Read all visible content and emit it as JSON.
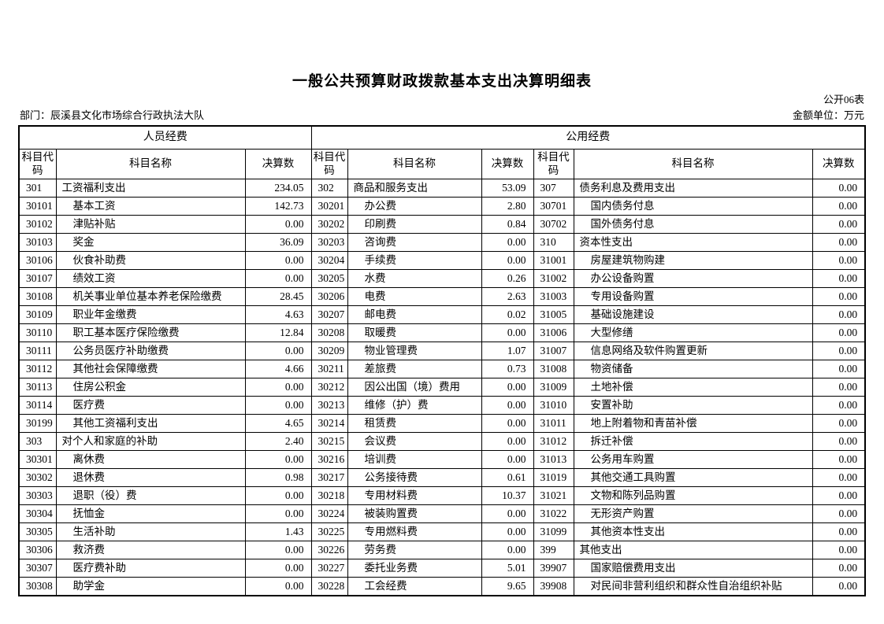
{
  "title": "一般公共预算财政拨款基本支出决算明细表",
  "meta": {
    "sheet_label": "公开06表",
    "department_label": "部门：辰溪县文化市场综合行政执法大队",
    "unit_label": "金额单位：万元"
  },
  "table": {
    "group_headers": [
      {
        "label": "人员经费"
      },
      {
        "label": "公用经费"
      }
    ],
    "col_header": {
      "code": "科目代码",
      "name": "科目名称",
      "value": "决算数"
    },
    "sections": [
      {
        "rows": [
          {
            "code": "301",
            "name": "工资福利支出",
            "value": "234.05"
          },
          {
            "code": "30101",
            "name": "基本工资",
            "value": "142.73"
          },
          {
            "code": "30102",
            "name": "津贴补贴",
            "value": "0.00"
          },
          {
            "code": "30103",
            "name": "奖金",
            "value": "36.09"
          },
          {
            "code": "30106",
            "name": "伙食补助费",
            "value": "0.00"
          },
          {
            "code": "30107",
            "name": "绩效工资",
            "value": "0.00"
          },
          {
            "code": "30108",
            "name": "机关事业单位基本养老保险缴费",
            "value": "28.45"
          },
          {
            "code": "30109",
            "name": "职业年金缴费",
            "value": "4.63"
          },
          {
            "code": "30110",
            "name": "职工基本医疗保险缴费",
            "value": "12.84"
          },
          {
            "code": "30111",
            "name": "公务员医疗补助缴费",
            "value": "0.00"
          },
          {
            "code": "30112",
            "name": "其他社会保障缴费",
            "value": "4.66"
          },
          {
            "code": "30113",
            "name": "住房公积金",
            "value": "0.00"
          },
          {
            "code": "30114",
            "name": "医疗费",
            "value": "0.00"
          },
          {
            "code": "30199",
            "name": "其他工资福利支出",
            "value": "4.65"
          },
          {
            "code": "303",
            "name": "对个人和家庭的补助",
            "value": "2.40"
          },
          {
            "code": "30301",
            "name": "离休费",
            "value": "0.00"
          },
          {
            "code": "30302",
            "name": "退休费",
            "value": "0.98"
          },
          {
            "code": "30303",
            "name": "退职（役）费",
            "value": "0.00"
          },
          {
            "code": "30304",
            "name": "抚恤金",
            "value": "0.00"
          },
          {
            "code": "30305",
            "name": "生活补助",
            "value": "1.43"
          },
          {
            "code": "30306",
            "name": "救济费",
            "value": "0.00"
          },
          {
            "code": "30307",
            "name": "医疗费补助",
            "value": "0.00"
          },
          {
            "code": "30308",
            "name": "助学金",
            "value": "0.00"
          }
        ]
      },
      {
        "rows": [
          {
            "code": "302",
            "name": "商品和服务支出",
            "value": "53.09"
          },
          {
            "code": "30201",
            "name": "办公费",
            "value": "2.80"
          },
          {
            "code": "30202",
            "name": "印刷费",
            "value": "0.84"
          },
          {
            "code": "30203",
            "name": "咨询费",
            "value": "0.00"
          },
          {
            "code": "30204",
            "name": "手续费",
            "value": "0.00"
          },
          {
            "code": "30205",
            "name": "水费",
            "value": "0.26"
          },
          {
            "code": "30206",
            "name": "电费",
            "value": "2.63"
          },
          {
            "code": "30207",
            "name": "邮电费",
            "value": "0.02"
          },
          {
            "code": "30208",
            "name": "取暖费",
            "value": "0.00"
          },
          {
            "code": "30209",
            "name": "物业管理费",
            "value": "1.07"
          },
          {
            "code": "30211",
            "name": "差旅费",
            "value": "0.73"
          },
          {
            "code": "30212",
            "name": "因公出国（境）费用",
            "value": "0.00"
          },
          {
            "code": "30213",
            "name": "维修（护）费",
            "value": "0.00"
          },
          {
            "code": "30214",
            "name": "租赁费",
            "value": "0.00"
          },
          {
            "code": "30215",
            "name": "会议费",
            "value": "0.00"
          },
          {
            "code": "30216",
            "name": "培训费",
            "value": "0.00"
          },
          {
            "code": "30217",
            "name": "公务接待费",
            "value": "0.61"
          },
          {
            "code": "30218",
            "name": "专用材料费",
            "value": "10.37"
          },
          {
            "code": "30224",
            "name": "被装购置费",
            "value": "0.00"
          },
          {
            "code": "30225",
            "name": "专用燃料费",
            "value": "0.00"
          },
          {
            "code": "30226",
            "name": "劳务费",
            "value": "0.00"
          },
          {
            "code": "30227",
            "name": "委托业务费",
            "value": "5.01"
          },
          {
            "code": "30228",
            "name": "工会经费",
            "value": "9.65"
          }
        ]
      },
      {
        "rows": [
          {
            "code": "307",
            "name": "债务利息及费用支出",
            "value": "0.00"
          },
          {
            "code": "30701",
            "name": "国内债务付息",
            "value": "0.00"
          },
          {
            "code": "30702",
            "name": "国外债务付息",
            "value": "0.00"
          },
          {
            "code": "310",
            "name": "资本性支出",
            "value": "0.00"
          },
          {
            "code": "31001",
            "name": "房屋建筑物购建",
            "value": "0.00"
          },
          {
            "code": "31002",
            "name": "办公设备购置",
            "value": "0.00"
          },
          {
            "code": "31003",
            "name": "专用设备购置",
            "value": "0.00"
          },
          {
            "code": "31005",
            "name": "基础设施建设",
            "value": "0.00"
          },
          {
            "code": "31006",
            "name": "大型修缮",
            "value": "0.00"
          },
          {
            "code": "31007",
            "name": "信息网络及软件购置更新",
            "value": "0.00"
          },
          {
            "code": "31008",
            "name": "物资储备",
            "value": "0.00"
          },
          {
            "code": "31009",
            "name": "土地补偿",
            "value": "0.00"
          },
          {
            "code": "31010",
            "name": "安置补助",
            "value": "0.00"
          },
          {
            "code": "31011",
            "name": "地上附着物和青苗补偿",
            "value": "0.00"
          },
          {
            "code": "31012",
            "name": "拆迁补偿",
            "value": "0.00"
          },
          {
            "code": "31013",
            "name": "公务用车购置",
            "value": "0.00"
          },
          {
            "code": "31019",
            "name": "其他交通工具购置",
            "value": "0.00"
          },
          {
            "code": "31021",
            "name": "文物和陈列品购置",
            "value": "0.00"
          },
          {
            "code": "31022",
            "name": "无形资产购置",
            "value": "0.00"
          },
          {
            "code": "31099",
            "name": "其他资本性支出",
            "value": "0.00"
          },
          {
            "code": "399",
            "name": "其他支出",
            "value": "0.00"
          },
          {
            "code": "39907",
            "name": "国家赔偿费用支出",
            "value": "0.00"
          },
          {
            "code": "39908",
            "name": "对民间非营利组织和群众性自治组织补贴",
            "value": "0.00"
          }
        ]
      }
    ]
  }
}
